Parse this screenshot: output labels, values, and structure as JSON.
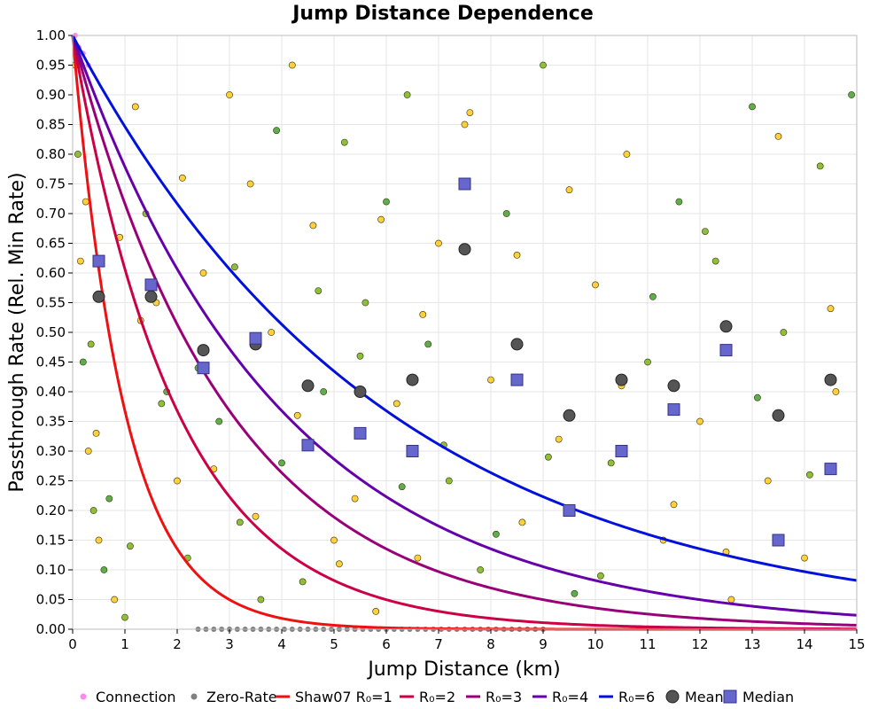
{
  "chart_data": {
    "type": "scatter",
    "title": "Jump Distance Dependence",
    "xlabel": "Jump Distance (km)",
    "ylabel": "Passthrough Rate (Rel. Min Rate)",
    "xlim": [
      0,
      15
    ],
    "ylim": [
      0,
      1
    ],
    "xticks": [
      "0",
      "1",
      "2",
      "3",
      "4",
      "5",
      "6",
      "7",
      "8",
      "9",
      "10",
      "11",
      "12",
      "13",
      "14",
      "15"
    ],
    "yticks": [
      "0.00",
      "0.05",
      "0.10",
      "0.15",
      "0.20",
      "0.25",
      "0.30",
      "0.35",
      "0.40",
      "0.45",
      "0.50",
      "0.55",
      "0.60",
      "0.65",
      "0.70",
      "0.75",
      "0.80",
      "0.85",
      "0.90",
      "0.95",
      "1.00"
    ],
    "grid": true,
    "legend_position": "bottom",
    "legend": [
      {
        "label": "Connection",
        "kind": "dot",
        "color": "#ff88ee"
      },
      {
        "label": "Zero-Rate",
        "kind": "dot",
        "color": "#808080"
      },
      {
        "label": "Shaw07 R₀=1",
        "kind": "line",
        "color": "#ee1111"
      },
      {
        "label": "R₀=2",
        "kind": "line",
        "color": "#cc0044"
      },
      {
        "label": "R₀=3",
        "kind": "line",
        "color": "#990077"
      },
      {
        "label": "R₀=4",
        "kind": "line",
        "color": "#6600aa"
      },
      {
        "label": "R₀=6",
        "kind": "line",
        "color": "#0011dd"
      },
      {
        "label": "Mean",
        "kind": "circle",
        "color": "#555555"
      },
      {
        "label": "Median",
        "kind": "square",
        "color": "#6666cc"
      }
    ],
    "model_curves": [
      {
        "name": "Shaw07 R₀=1",
        "R0": 1,
        "color": "#ee1111"
      },
      {
        "name": "R₀=2",
        "R0": 2,
        "color": "#cc0044"
      },
      {
        "name": "R₀=3",
        "R0": 3,
        "color": "#990077"
      },
      {
        "name": "R₀=4",
        "R0": 4,
        "color": "#6600aa"
      },
      {
        "name": "R₀=6",
        "R0": 6,
        "color": "#0011dd"
      }
    ],
    "mean": {
      "x": [
        0.5,
        1.5,
        2.5,
        3.5,
        4.5,
        5.5,
        6.5,
        7.5,
        8.5,
        9.5,
        10.5,
        11.5,
        12.5,
        13.5,
        14.5
      ],
      "y": [
        0.56,
        0.56,
        0.47,
        0.48,
        0.41,
        0.4,
        0.42,
        0.64,
        0.48,
        0.36,
        0.42,
        0.41,
        0.51,
        0.36,
        0.42
      ]
    },
    "median": {
      "x": [
        0.5,
        1.5,
        2.5,
        3.5,
        4.5,
        5.5,
        6.5,
        7.5,
        8.5,
        9.5,
        10.5,
        11.5,
        12.5,
        13.5,
        14.5
      ],
      "y": [
        0.62,
        0.58,
        0.44,
        0.49,
        0.31,
        0.33,
        0.3,
        0.75,
        0.42,
        0.2,
        0.3,
        0.37,
        0.47,
        0.15,
        0.27
      ]
    },
    "sample_points": {
      "x": [
        0.05,
        0.1,
        0.15,
        0.2,
        0.3,
        0.4,
        0.5,
        0.6,
        0.8,
        1.0,
        1.2,
        1.4,
        1.6,
        1.8,
        2.0,
        2.2,
        2.5,
        2.8,
        3.0,
        3.2,
        3.4,
        3.6,
        3.8,
        4.0,
        4.2,
        4.4,
        4.6,
        4.8,
        5.0,
        5.2,
        5.4,
        5.6,
        5.8,
        6.0,
        6.2,
        6.4,
        6.6,
        6.8,
        7.0,
        7.2,
        7.5,
        7.8,
        8.0,
        8.3,
        8.6,
        9.0,
        9.3,
        9.6,
        10.0,
        10.3,
        10.6,
        11.0,
        11.3,
        11.6,
        12.0,
        12.3,
        12.6,
        13.0,
        13.3,
        13.6,
        14.0,
        14.3,
        14.6,
        14.9,
        0.25,
        0.35,
        0.45,
        0.7,
        0.9,
        1.1,
        1.3,
        1.7,
        2.1,
        2.4,
        2.7,
        3.1,
        3.5,
        3.9,
        4.3,
        4.7,
        5.1,
        5.5,
        5.9,
        6.3,
        6.7,
        7.1,
        7.6,
        8.1,
        8.5,
        9.1,
        9.5,
        10.1,
        10.5,
        11.1,
        11.5,
        12.1,
        12.5,
        13.1,
        13.5,
        14.1,
        14.5
      ],
      "y": [
        0.95,
        0.8,
        0.62,
        0.45,
        0.3,
        0.2,
        0.15,
        0.1,
        0.05,
        0.02,
        0.88,
        0.7,
        0.55,
        0.4,
        0.25,
        0.12,
        0.6,
        0.35,
        0.9,
        0.18,
        0.75,
        0.05,
        0.5,
        0.28,
        0.95,
        0.08,
        0.68,
        0.4,
        0.15,
        0.82,
        0.22,
        0.55,
        0.03,
        0.72,
        0.38,
        0.9,
        0.12,
        0.48,
        0.65,
        0.25,
        0.85,
        0.1,
        0.42,
        0.7,
        0.18,
        0.95,
        0.32,
        0.06,
        0.58,
        0.28,
        0.8,
        0.45,
        0.15,
        0.72,
        0.35,
        0.62,
        0.05,
        0.88,
        0.25,
        0.5,
        0.12,
        0.78,
        0.4,
        0.9,
        0.72,
        0.48,
        0.33,
        0.22,
        0.66,
        0.14,
        0.52,
        0.38,
        0.76,
        0.44,
        0.27,
        0.61,
        0.19,
        0.84,
        0.36,
        0.57,
        0.11,
        0.46,
        0.69,
        0.24,
        0.53,
        0.31,
        0.87,
        0.16,
        0.63,
        0.29,
        0.74,
        0.09,
        0.41,
        0.56,
        0.21,
        0.67,
        0.13,
        0.39,
        0.83,
        0.26,
        0.54
      ],
      "colors": [
        "#ffcc33",
        "#88bb33",
        "#ffcc33",
        "#55aa44",
        "#ffcc33",
        "#88bb33",
        "#ffcc33",
        "#55aa44",
        "#ffcc33",
        "#88bb33"
      ]
    },
    "zero_rate_points": {
      "x": [
        2.4,
        2.55,
        2.7,
        2.85,
        3.0,
        3.15,
        3.3,
        3.45,
        3.6,
        3.75,
        3.9,
        4.05,
        4.2,
        4.35,
        4.5,
        4.65,
        4.8,
        4.95,
        5.1,
        5.25,
        5.4,
        5.55,
        5.7,
        5.85,
        6.0,
        6.15,
        6.3,
        6.45,
        6.6,
        6.75,
        6.9,
        7.05,
        7.2,
        7.35,
        7.5,
        7.65,
        7.8,
        7.95,
        8.1,
        8.25,
        8.4,
        8.55,
        8.7,
        8.85,
        9.0
      ],
      "y": [
        0,
        0,
        0,
        0,
        0,
        0,
        0,
        0,
        0,
        0,
        0,
        0,
        0,
        0,
        0,
        0,
        0,
        0,
        0,
        0,
        0,
        0,
        0,
        0,
        0,
        0,
        0,
        0,
        0,
        0,
        0,
        0,
        0,
        0,
        0,
        0,
        0,
        0,
        0,
        0,
        0,
        0,
        0,
        0,
        0
      ]
    },
    "connection_points": {
      "x": [
        0.05,
        0.12,
        0.2,
        0.3
      ],
      "y": [
        1.0,
        0.98,
        0.97,
        0.95
      ]
    }
  }
}
